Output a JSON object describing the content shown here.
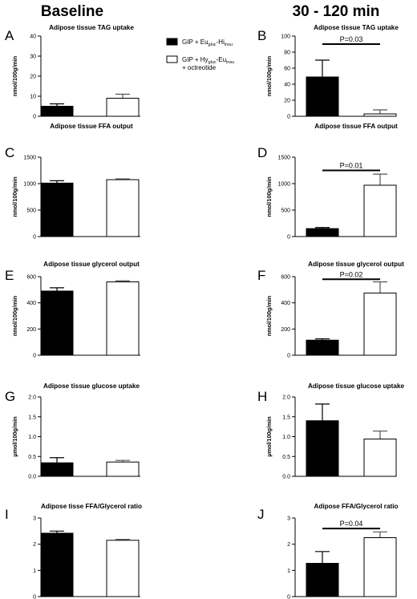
{
  "headings": {
    "left": "Baseline",
    "right": "30 - 120 min"
  },
  "legend": {
    "items": [
      {
        "fill": "#000000",
        "prefix": "GIP + Eu",
        "sub1": "gluc",
        "mid": "-Hi",
        "sub2": "insu",
        "extra": ""
      },
      {
        "fill": "#ffffff",
        "prefix": "GIP + Hy",
        "sub1": "gluc",
        "mid": "-Eu",
        "sub2": "insu",
        "extra": "+ octreotide"
      }
    ]
  },
  "colors": {
    "group1": "#000000",
    "group2": "#ffffff",
    "stroke": "#000000",
    "errorbar_group2": "#555555"
  },
  "chart_data": [
    {
      "id": "A",
      "letter": "A",
      "type": "bar",
      "title": "Adipose tissue TAG uptake",
      "ylabel": "nmol/100g/min",
      "ylim": [
        0,
        40
      ],
      "yticks": [
        0,
        10,
        20,
        30,
        40
      ],
      "tick_labels": [
        "0",
        "10",
        "20",
        "30",
        "40"
      ],
      "values": [
        5,
        9
      ],
      "errors": [
        1.2,
        2
      ],
      "significance": null
    },
    {
      "id": "B",
      "letter": "B",
      "type": "bar",
      "title": "Adipose tissue TAG uptake",
      "ylabel": "nmol/100g/min",
      "ylim": [
        0,
        100
      ],
      "yticks": [
        0,
        20,
        40,
        60,
        80,
        100
      ],
      "tick_labels": [
        "0",
        "20",
        "40",
        "60",
        "80",
        "100"
      ],
      "values": [
        49,
        3
      ],
      "errors": [
        21,
        5
      ],
      "significance": {
        "label": "P=0.03",
        "y": 90
      }
    },
    {
      "id": "C",
      "letter": "C",
      "type": "bar",
      "title": "Adipose tissue FFA output",
      "ylabel": "nmol/100g/min",
      "ylim": [
        0,
        1500
      ],
      "yticks": [
        0,
        500,
        1000,
        1500
      ],
      "tick_labels": [
        "0",
        "500",
        "1000",
        "1500"
      ],
      "values": [
        1010,
        1075
      ],
      "errors": [
        45,
        15
      ],
      "significance": null
    },
    {
      "id": "D",
      "letter": "D",
      "type": "bar",
      "title": "Adipose tissue FFA output",
      "ylabel": "nmol/100g/min",
      "ylim": [
        0,
        1500
      ],
      "yticks": [
        0,
        500,
        1000,
        1500
      ],
      "tick_labels": [
        "0",
        "500",
        "1000",
        "1500"
      ],
      "values": [
        150,
        970
      ],
      "errors": [
        20,
        210
      ],
      "significance": {
        "label": "P=0.01",
        "y": 1250
      }
    },
    {
      "id": "E",
      "letter": "E",
      "type": "bar",
      "title": "Adipose tissue glycerol output",
      "ylabel": "nmol/100g/min",
      "ylim": [
        0,
        600
      ],
      "yticks": [
        0,
        200,
        400,
        600
      ],
      "tick_labels": [
        "0",
        "200",
        "400",
        "600"
      ],
      "values": [
        490,
        560
      ],
      "errors": [
        25,
        8
      ],
      "significance": null
    },
    {
      "id": "F",
      "letter": "F",
      "type": "bar",
      "title": "Adipose tissue glycerol output",
      "ylabel": "nmol/100g/min",
      "ylim": [
        0,
        600
      ],
      "yticks": [
        0,
        200,
        400,
        600
      ],
      "tick_labels": [
        "0",
        "200",
        "400",
        "600"
      ],
      "values": [
        115,
        475
      ],
      "errors": [
        10,
        85
      ],
      "significance": {
        "label": "P=0.02",
        "y": 580
      }
    },
    {
      "id": "G",
      "letter": "G",
      "type": "bar",
      "title": "Adipose tissue glucose uptake",
      "ylabel": "μmol/100g/min",
      "ylim": [
        0,
        2.0
      ],
      "yticks": [
        0,
        0.5,
        1.0,
        1.5,
        2.0
      ],
      "tick_labels": [
        "0.0",
        "0.5",
        "1.0",
        "1.5",
        "2.0"
      ],
      "values": [
        0.34,
        0.36
      ],
      "errors": [
        0.13,
        0.04
      ],
      "significance": null
    },
    {
      "id": "H",
      "letter": "H",
      "type": "bar",
      "title": "Adipose tissue glucose uptake",
      "ylabel": "μmol/100g/min",
      "ylim": [
        0,
        2.0
      ],
      "yticks": [
        0,
        0.5,
        1.0,
        1.5,
        2.0
      ],
      "tick_labels": [
        "0.0",
        "0.5",
        "1.0",
        "1.5",
        "2.0"
      ],
      "values": [
        1.4,
        0.94
      ],
      "errors": [
        0.42,
        0.2
      ],
      "significance": null
    },
    {
      "id": "I",
      "letter": "I",
      "type": "bar",
      "title": "Adipose tisse FFA/Glycerol ratio",
      "ylabel": "",
      "ylim": [
        0,
        3
      ],
      "yticks": [
        0,
        1,
        2,
        3
      ],
      "tick_labels": [
        "0",
        "1",
        "2",
        "3"
      ],
      "values": [
        2.42,
        2.15
      ],
      "errors": [
        0.08,
        0.03
      ],
      "significance": null
    },
    {
      "id": "J",
      "letter": "J",
      "type": "bar",
      "title": "Adipose FFA/Glycerol ratio",
      "ylabel": "",
      "ylim": [
        0,
        3
      ],
      "yticks": [
        0,
        1,
        2,
        3
      ],
      "tick_labels": [
        "0",
        "1",
        "2",
        "3"
      ],
      "values": [
        1.27,
        2.25
      ],
      "errors": [
        0.45,
        0.22
      ],
      "significance": {
        "label": "P=0.04",
        "y": 2.6
      }
    }
  ]
}
